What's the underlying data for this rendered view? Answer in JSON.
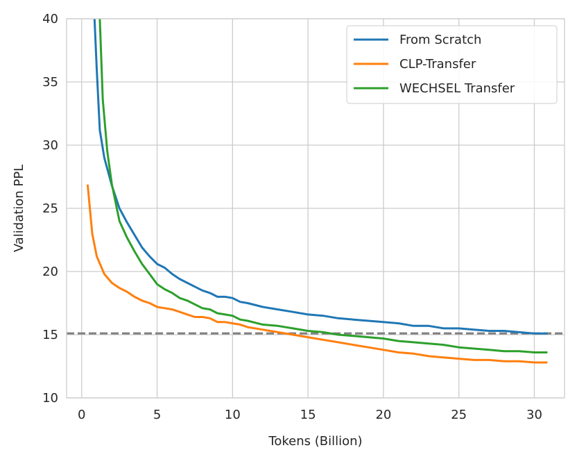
{
  "chart_data": {
    "type": "line",
    "xlabel": "Tokens (Billion)",
    "ylabel": "Validation PPL",
    "xlim": [
      -1,
      32
    ],
    "ylim": [
      10,
      40
    ],
    "xticks": [
      0,
      5,
      10,
      15,
      20,
      25,
      30
    ],
    "yticks": [
      10,
      15,
      20,
      25,
      30,
      35,
      40
    ],
    "grid": true,
    "legend_position": "top-right",
    "reference_line": {
      "y": 15.1,
      "style": "dashed",
      "color": "#808080"
    },
    "series": [
      {
        "name": "From Scratch",
        "color": "#1f77b4",
        "x": [
          0.85,
          1.0,
          1.2,
          1.5,
          2.0,
          2.5,
          3.0,
          3.5,
          4.0,
          4.5,
          5.0,
          5.5,
          6.0,
          6.5,
          7.0,
          7.5,
          8.0,
          8.5,
          9.0,
          9.5,
          10.0,
          10.5,
          11.0,
          12.0,
          13.0,
          14.0,
          15.0,
          16.0,
          17.0,
          18.0,
          19.0,
          20.0,
          21.0,
          22.0,
          23.0,
          24.0,
          25.0,
          26.0,
          27.0,
          28.0,
          29.0,
          30.0,
          30.8
        ],
        "y": [
          40.0,
          36.0,
          31.2,
          29.0,
          26.8,
          25.0,
          23.9,
          22.9,
          21.9,
          21.2,
          20.6,
          20.3,
          19.8,
          19.4,
          19.1,
          18.8,
          18.5,
          18.3,
          18.0,
          18.0,
          17.9,
          17.6,
          17.5,
          17.2,
          17.0,
          16.8,
          16.6,
          16.5,
          16.3,
          16.2,
          16.1,
          16.0,
          15.9,
          15.7,
          15.7,
          15.5,
          15.5,
          15.4,
          15.3,
          15.3,
          15.2,
          15.1,
          15.1
        ]
      },
      {
        "name": "CLP-Transfer",
        "color": "#ff7f0e",
        "x": [
          0.4,
          0.7,
          1.0,
          1.5,
          2.0,
          2.5,
          3.0,
          3.5,
          4.0,
          4.5,
          5.0,
          5.5,
          6.0,
          6.5,
          7.0,
          7.5,
          8.0,
          8.5,
          9.0,
          9.5,
          10.0,
          10.5,
          11.0,
          12.0,
          13.0,
          14.0,
          15.0,
          16.0,
          17.0,
          18.0,
          19.0,
          20.0,
          21.0,
          22.0,
          23.0,
          24.0,
          25.0,
          26.0,
          27.0,
          28.0,
          29.0,
          30.0,
          30.8
        ],
        "y": [
          26.8,
          23.0,
          21.2,
          19.8,
          19.1,
          18.7,
          18.4,
          18.0,
          17.7,
          17.5,
          17.2,
          17.1,
          17.0,
          16.8,
          16.6,
          16.4,
          16.4,
          16.3,
          16.0,
          16.0,
          15.9,
          15.8,
          15.6,
          15.4,
          15.2,
          15.0,
          14.8,
          14.6,
          14.4,
          14.2,
          14.0,
          13.8,
          13.6,
          13.5,
          13.3,
          13.2,
          13.1,
          13.0,
          13.0,
          12.9,
          12.9,
          12.8,
          12.8
        ]
      },
      {
        "name": "WECHSEL Transfer",
        "color": "#2ca02c",
        "x": [
          1.2,
          1.4,
          1.7,
          2.0,
          2.5,
          3.0,
          3.5,
          4.0,
          4.5,
          5.0,
          5.5,
          6.0,
          6.5,
          7.0,
          7.5,
          8.0,
          8.5,
          9.0,
          9.5,
          10.0,
          10.5,
          11.0,
          12.0,
          13.0,
          14.0,
          15.0,
          16.0,
          17.0,
          18.0,
          19.0,
          20.0,
          21.0,
          22.0,
          23.0,
          24.0,
          25.0,
          26.0,
          27.0,
          28.0,
          29.0,
          30.0,
          30.8
        ],
        "y": [
          40.0,
          33.6,
          29.5,
          26.9,
          24.0,
          22.7,
          21.6,
          20.6,
          19.8,
          19.0,
          18.6,
          18.3,
          17.9,
          17.7,
          17.4,
          17.1,
          17.0,
          16.7,
          16.6,
          16.5,
          16.2,
          16.1,
          15.8,
          15.7,
          15.5,
          15.3,
          15.2,
          15.0,
          14.9,
          14.8,
          14.7,
          14.5,
          14.4,
          14.3,
          14.2,
          14.0,
          13.9,
          13.8,
          13.7,
          13.7,
          13.6,
          13.6
        ]
      }
    ]
  }
}
